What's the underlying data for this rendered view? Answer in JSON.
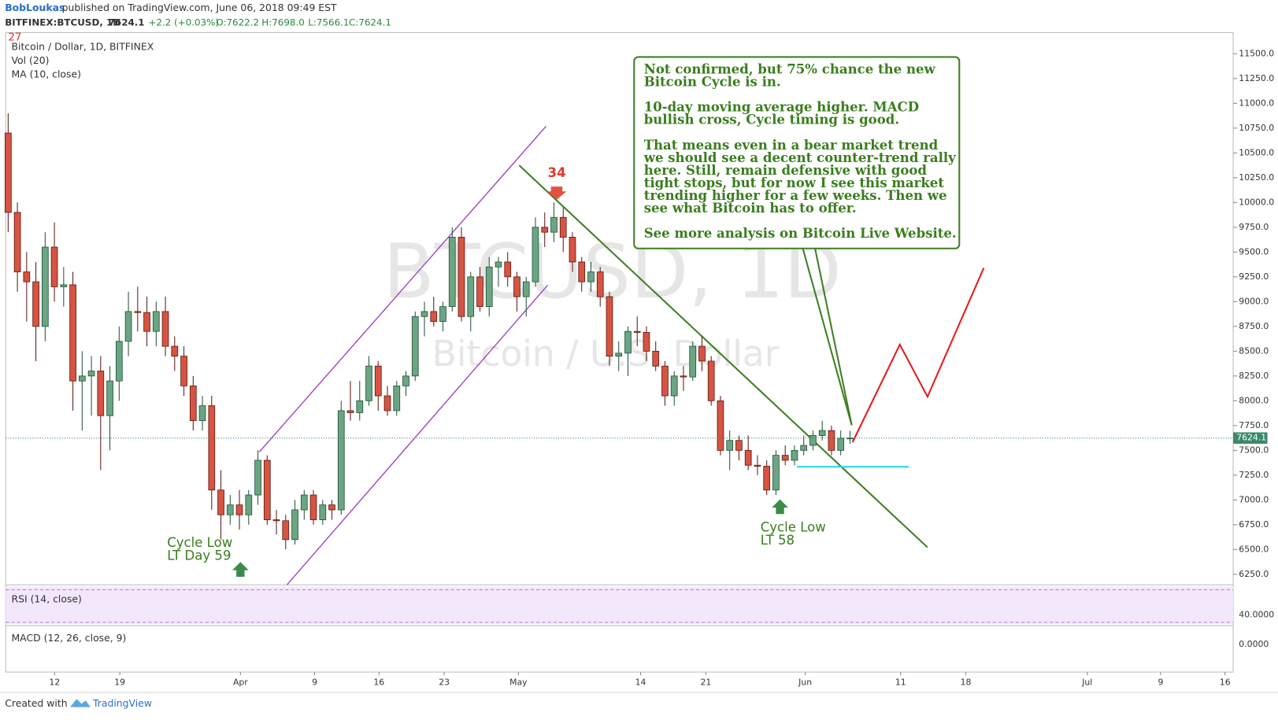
{
  "header": {
    "author": "BobLoukas",
    "published": "published on TradingView.com, June 06, 2018 09:49 EST"
  },
  "chart_data": {
    "type": "candlestick",
    "symbol": "BITFINEX:BTCUSD, 1D",
    "quote": {
      "last": 7624.1,
      "change": "+2.2 (+0.03%)",
      "open": "O:7622.2",
      "high": "H:7698.0",
      "low": "L:7566.1",
      "close": "C:7624.1"
    },
    "legend": [
      "Bitcoin / Dollar, 1D, BITFINEX",
      "Vol (20)",
      "MA (10, close)"
    ],
    "corner_mark": "27",
    "watermark": [
      "BTCUSD, 1D",
      "Bitcoin / U.S. Dollar"
    ],
    "up_color": "#6ba583",
    "down_color": "#d75442",
    "candles": [
      [
        10700,
        10900,
        9700,
        9900
      ],
      [
        9900,
        10000,
        9100,
        9300
      ],
      [
        9300,
        9500,
        8800,
        9200
      ],
      [
        9200,
        9400,
        8400,
        8750
      ],
      [
        8750,
        9700,
        8600,
        9550
      ],
      [
        9550,
        9800,
        9000,
        9150
      ],
      [
        9150,
        9350,
        8950,
        9170
      ],
      [
        9170,
        9300,
        7900,
        8200
      ],
      [
        8200,
        8500,
        7700,
        8250
      ],
      [
        8250,
        8450,
        7850,
        8300
      ],
      [
        8300,
        8450,
        7300,
        7850
      ],
      [
        7850,
        8350,
        7500,
        8200
      ],
      [
        8200,
        8750,
        8000,
        8600
      ],
      [
        8600,
        9100,
        8450,
        8900
      ],
      [
        8900,
        9150,
        8700,
        8890
      ],
      [
        8890,
        9050,
        8550,
        8700
      ],
      [
        8700,
        9000,
        8550,
        8900
      ],
      [
        8900,
        9050,
        8450,
        8550
      ],
      [
        8550,
        8650,
        8300,
        8450
      ],
      [
        8450,
        8550,
        8050,
        8150
      ],
      [
        8150,
        8250,
        7700,
        7800
      ],
      [
        7800,
        8050,
        7700,
        7950
      ],
      [
        7950,
        8050,
        6900,
        7100
      ],
      [
        7100,
        7300,
        6600,
        6850
      ],
      [
        6850,
        7050,
        6750,
        6950
      ],
      [
        6950,
        7100,
        6700,
        6850
      ],
      [
        6850,
        7100,
        6750,
        7050
      ],
      [
        7050,
        7500,
        6950,
        7400
      ],
      [
        7400,
        7450,
        6750,
        6800
      ],
      [
        6800,
        6900,
        6650,
        6790
      ],
      [
        6790,
        6850,
        6500,
        6600
      ],
      [
        6600,
        7000,
        6550,
        6900
      ],
      [
        6900,
        7100,
        6800,
        7050
      ],
      [
        7050,
        7100,
        6750,
        6800
      ],
      [
        6800,
        7000,
        6750,
        6950
      ],
      [
        6950,
        7000,
        6800,
        6900
      ],
      [
        6900,
        8000,
        6850,
        7900
      ],
      [
        7900,
        8200,
        7800,
        7880
      ],
      [
        7880,
        8200,
        7800,
        8000
      ],
      [
        8000,
        8450,
        7950,
        8350
      ],
      [
        8350,
        8400,
        7900,
        8050
      ],
      [
        8050,
        8150,
        7850,
        7900
      ],
      [
        7900,
        8200,
        7850,
        8150
      ],
      [
        8150,
        8300,
        8050,
        8250
      ],
      [
        8250,
        8900,
        8200,
        8850
      ],
      [
        8850,
        9000,
        8650,
        8900
      ],
      [
        8900,
        9050,
        8750,
        8800
      ],
      [
        8800,
        9000,
        8700,
        8950
      ],
      [
        8950,
        9750,
        8900,
        9650
      ],
      [
        9650,
        9750,
        8800,
        8850
      ],
      [
        8850,
        9300,
        8700,
        9250
      ],
      [
        9250,
        9350,
        8900,
        8950
      ],
      [
        8950,
        9450,
        8850,
        9350
      ],
      [
        9350,
        9450,
        9150,
        9400
      ],
      [
        9400,
        9500,
        9150,
        9250
      ],
      [
        9250,
        9300,
        8900,
        9050
      ],
      [
        9050,
        9250,
        8850,
        9200
      ],
      [
        9200,
        9850,
        9150,
        9750
      ],
      [
        9750,
        9900,
        9550,
        9700
      ],
      [
        9700,
        10000,
        9600,
        9850
      ],
      [
        9850,
        9950,
        9500,
        9650
      ],
      [
        9650,
        9700,
        9300,
        9400
      ],
      [
        9400,
        9450,
        9100,
        9200
      ],
      [
        9200,
        9400,
        9100,
        9300
      ],
      [
        9300,
        9350,
        8950,
        9050
      ],
      [
        9050,
        9100,
        8350,
        8450
      ],
      [
        8450,
        8600,
        8300,
        8480
      ],
      [
        8480,
        8750,
        8250,
        8700
      ],
      [
        8700,
        8850,
        8550,
        8690
      ],
      [
        8690,
        8750,
        8400,
        8500
      ],
      [
        8500,
        8600,
        8300,
        8350
      ],
      [
        8350,
        8400,
        7950,
        8050
      ],
      [
        8050,
        8300,
        7950,
        8250
      ],
      [
        8250,
        8350,
        8100,
        8240
      ],
      [
        8240,
        8600,
        8200,
        8550
      ],
      [
        8550,
        8650,
        8300,
        8400
      ],
      [
        8400,
        8450,
        7950,
        8000
      ],
      [
        8000,
        8050,
        7450,
        7500
      ],
      [
        7500,
        7700,
        7300,
        7600
      ],
      [
        7600,
        7650,
        7400,
        7500
      ],
      [
        7500,
        7650,
        7300,
        7350
      ],
      [
        7350,
        7450,
        7250,
        7340
      ],
      [
        7340,
        7400,
        7050,
        7100
      ],
      [
        7100,
        7500,
        7050,
        7450
      ],
      [
        7450,
        7550,
        7350,
        7400
      ],
      [
        7400,
        7550,
        7350,
        7500
      ],
      [
        7500,
        7650,
        7450,
        7550
      ],
      [
        7550,
        7700,
        7500,
        7650
      ],
      [
        7650,
        7800,
        7600,
        7700
      ],
      [
        7700,
        7750,
        7450,
        7500
      ],
      [
        7500,
        7700,
        7450,
        7622.2
      ],
      [
        7622.2,
        7698,
        7566.1,
        7624.1
      ]
    ],
    "ylim": [
      6250,
      11500
    ],
    "yticks": [
      {
        "value": 6250,
        "label": "6250.0"
      },
      {
        "value": 6500,
        "label": "6500.0"
      },
      {
        "value": 6750,
        "label": "6750.0"
      },
      {
        "value": 7000,
        "label": "7000.0"
      },
      {
        "value": 7250,
        "label": "7250.0"
      },
      {
        "value": 7500,
        "label": "7500.0"
      },
      {
        "value": 7750,
        "label": "7750.0"
      },
      {
        "value": 8000,
        "label": "8000.0"
      },
      {
        "value": 8250,
        "label": "8250.0"
      },
      {
        "value": 8500,
        "label": "8500.0"
      },
      {
        "value": 8750,
        "label": "8750.0"
      },
      {
        "value": 9000,
        "label": "9000.0"
      },
      {
        "value": 9250,
        "label": "9250.0"
      },
      {
        "value": 9500,
        "label": "9500.0"
      },
      {
        "value": 9750,
        "label": "9750.0"
      },
      {
        "value": 10000,
        "label": "10000.0"
      },
      {
        "value": 10250,
        "label": "10250.0"
      },
      {
        "value": 10500,
        "label": "10500.0"
      },
      {
        "value": 10750,
        "label": "10750.0"
      },
      {
        "value": 11000,
        "label": "11000.0"
      },
      {
        "value": 11250,
        "label": "11250.0"
      },
      {
        "value": 11500,
        "label": "11500.0"
      }
    ],
    "xtick_labels": [
      "12",
      "19",
      "Apr",
      "9",
      "16",
      "23",
      "May",
      "14",
      "21",
      "Jun",
      "11",
      "18",
      "Jul",
      "9",
      "16"
    ],
    "cycle_count": "34",
    "cycle_lows": [
      [
        "Cycle Low",
        "LT Day 59"
      ],
      [
        "Cycle Low",
        "LT 58"
      ]
    ],
    "annotation": [
      "Not confirmed, but 75% chance the new",
      "Bitcoin Cycle is in.",
      "",
      "10-day moving average higher.  MACD",
      "bullish cross, Cycle timing is good.",
      "",
      "That means even in a bear market trend",
      "we should see a decent counter-trend rally",
      "here.  Still, remain defensive with good",
      "tight stops, but for now I see this market",
      "trending higher for a few weeks.  Then we",
      "see what Bitcoin has to offer.",
      "",
      "See more analysis on Bitcoin Live Website."
    ],
    "rsi": {
      "label": "RSI (14, close)",
      "tick": {
        "value": 40,
        "label": "40.0000"
      }
    },
    "macd": {
      "label": "MACD (12, 26, close, 9)",
      "tick": {
        "value": 0,
        "label": "0.0000"
      }
    }
  },
  "footer": {
    "created": "Created with",
    "brand": "TradingView"
  }
}
